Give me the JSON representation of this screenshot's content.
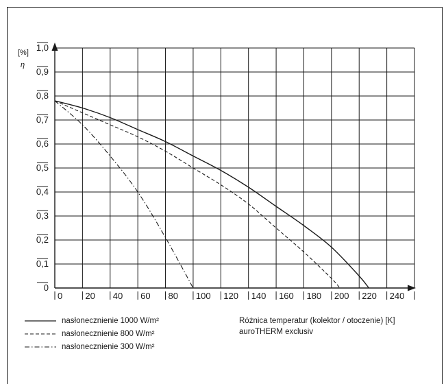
{
  "chart_data": {
    "type": "line",
    "y_unit": "[%]",
    "y_symbol": "η",
    "xlim": [
      0,
      260
    ],
    "ylim": [
      0,
      1.0
    ],
    "x_ticks": [
      "0",
      "20",
      "40",
      "60",
      "80",
      "100",
      "120",
      "140",
      "160",
      "180",
      "200",
      "220",
      "240"
    ],
    "y_ticks": [
      "0",
      "0,1",
      "0,2",
      "0,3",
      "0,4",
      "0,5",
      "0,6",
      "0,7",
      "0,8",
      "0,9",
      "1,0"
    ],
    "grid": true,
    "series": [
      {
        "name": "nasłonecznienie 1000 W/m²",
        "style": "solid",
        "x": [
          0,
          20,
          40,
          60,
          80,
          100,
          120,
          140,
          160,
          180,
          200,
          220,
          227
        ],
        "y": [
          0.78,
          0.75,
          0.71,
          0.66,
          0.61,
          0.55,
          0.49,
          0.42,
          0.34,
          0.26,
          0.17,
          0.05,
          0.0
        ]
      },
      {
        "name": "nasłonecznienie 800 W/m²",
        "style": "dashed",
        "x": [
          0,
          20,
          40,
          60,
          80,
          100,
          120,
          140,
          160,
          180,
          200,
          206
        ],
        "y": [
          0.78,
          0.73,
          0.68,
          0.63,
          0.57,
          0.5,
          0.43,
          0.35,
          0.25,
          0.15,
          0.04,
          0.0
        ]
      },
      {
        "name": "nasłonecznienie 300 W/m²",
        "style": "dashdot",
        "x": [
          0,
          20,
          40,
          60,
          80,
          100
        ],
        "y": [
          0.78,
          0.68,
          0.55,
          0.4,
          0.21,
          0.0
        ]
      }
    ],
    "xlabel": "Różnica temperatur (kolektor / otoczenie) [K]",
    "caption": "auroTHERM exclusiv"
  },
  "colors": {
    "ink": "#1a1a1a",
    "background": "#ffffff"
  }
}
